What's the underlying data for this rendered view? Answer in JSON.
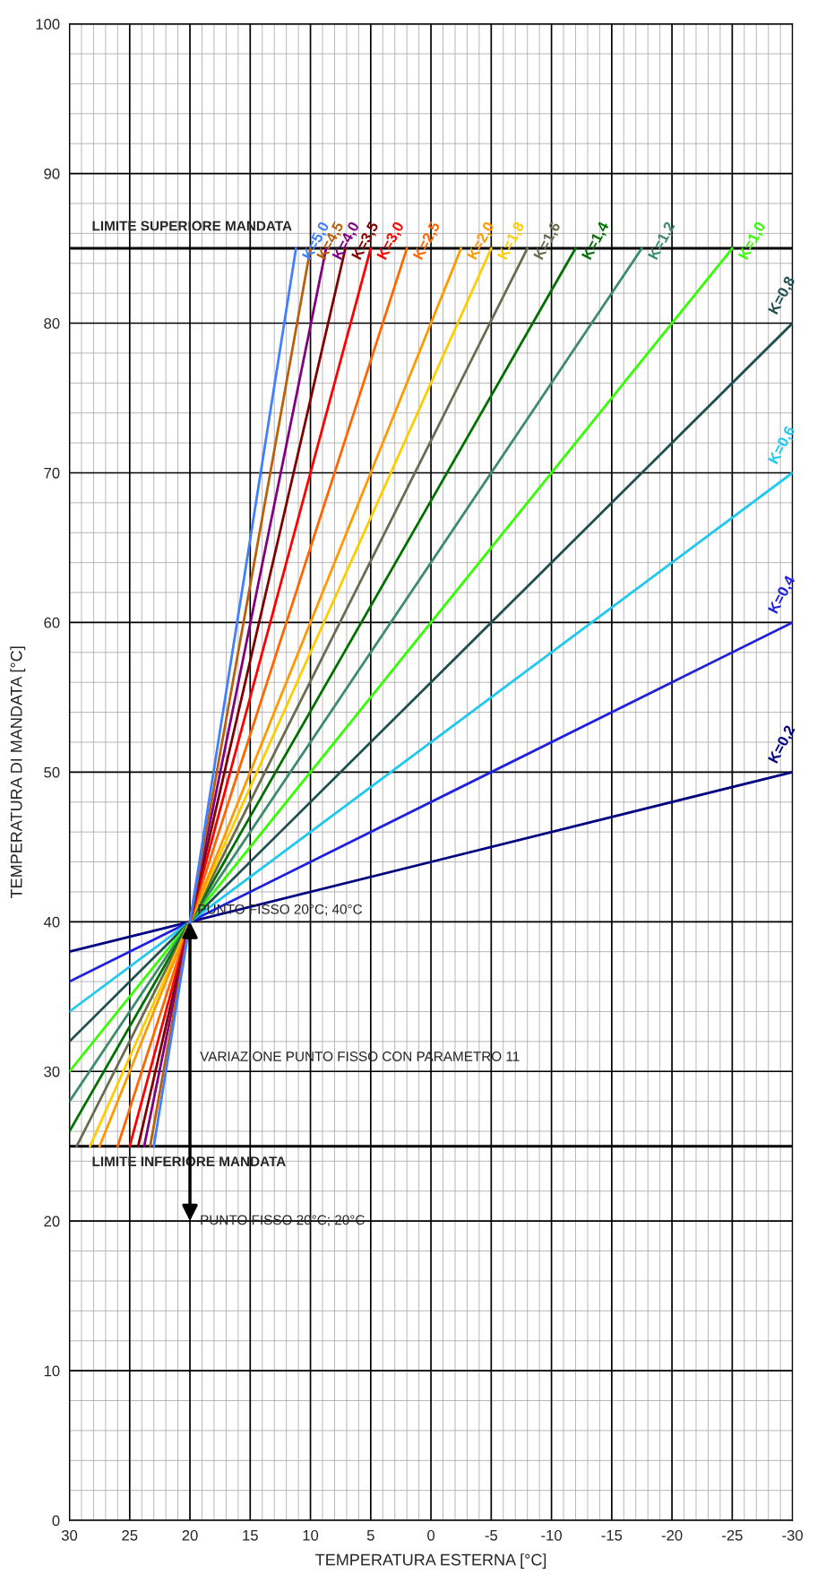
{
  "chart_data": {
    "type": "line",
    "xlabel": "TEMPERATURA ESTERNA [°C]",
    "ylabel": "TEMPERATURA DI MANDATA [°C]",
    "xlim": [
      30,
      -30
    ],
    "xticks": [
      30,
      25,
      20,
      15,
      10,
      5,
      0,
      -5,
      -10,
      -15,
      -20,
      -25,
      -30
    ],
    "ylim": [
      0,
      100
    ],
    "yticks": [
      0,
      10,
      20,
      30,
      40,
      50,
      60,
      70,
      80,
      90,
      100
    ],
    "grid": true,
    "series": [
      {
        "name": "K=0,2",
        "color": "#000080",
        "x": [
          30,
          20,
          -30
        ],
        "values": [
          38,
          40,
          50
        ]
      },
      {
        "name": "K=0,4",
        "color": "#2020e0",
        "x": [
          30,
          20,
          -30
        ],
        "values": [
          36,
          40,
          60
        ]
      },
      {
        "name": "K=0,6",
        "color": "#20c8f0",
        "x": [
          30,
          20,
          -30
        ],
        "values": [
          34,
          40,
          70
        ]
      },
      {
        "name": "K=0,8",
        "color": "#1f4f4f",
        "x": [
          30,
          20,
          -30
        ],
        "values": [
          32,
          40,
          80
        ]
      },
      {
        "name": "K=1,0",
        "color": "#33ff00",
        "x": [
          30,
          20,
          -25
        ],
        "values": [
          30,
          40,
          85
        ]
      },
      {
        "name": "K=1,2",
        "color": "#3c8c6c",
        "x": [
          30,
          20,
          -17.5
        ],
        "values": [
          28,
          40,
          85
        ]
      },
      {
        "name": "K=1,4",
        "color": "#007000",
        "x": [
          30,
          20,
          -12
        ],
        "values": [
          26,
          40,
          85
        ]
      },
      {
        "name": "K=1,6",
        "color": "#6b6b4f",
        "x": [
          29.4,
          20,
          -8
        ],
        "values": [
          25,
          40,
          85
        ]
      },
      {
        "name": "K=1,8",
        "color": "#ffcc00",
        "x": [
          28.3,
          20,
          -5
        ],
        "values": [
          25,
          40,
          85
        ]
      },
      {
        "name": "K=2,0",
        "color": "#ff9900",
        "x": [
          27.5,
          20,
          -2.5
        ],
        "values": [
          25,
          40,
          85
        ]
      },
      {
        "name": "K=2,5",
        "color": "#ff6600",
        "x": [
          26,
          20,
          2
        ],
        "values": [
          25,
          40,
          85
        ]
      },
      {
        "name": "K=3,0",
        "color": "#ff0000",
        "x": [
          25,
          20,
          5
        ],
        "values": [
          25,
          40,
          85
        ]
      },
      {
        "name": "K=3,5",
        "color": "#800000",
        "x": [
          24.3,
          20,
          7.1
        ],
        "values": [
          25,
          40,
          85
        ]
      },
      {
        "name": "K=4,0",
        "color": "#800080",
        "x": [
          23.8,
          20,
          8.7
        ],
        "values": [
          25,
          40,
          85
        ]
      },
      {
        "name": "K=4,5",
        "color": "#b8600c",
        "x": [
          23.3,
          20,
          10
        ],
        "values": [
          25,
          40,
          85
        ]
      },
      {
        "name": "K=5,0",
        "color": "#4080ff",
        "x": [
          23,
          20,
          11.2
        ],
        "values": [
          25,
          40,
          85
        ]
      }
    ],
    "ref_lines": [
      {
        "axis": "y",
        "value": 85,
        "label": "LIMITE SUPERIORE MANDATA",
        "color": "#000000"
      },
      {
        "axis": "y",
        "value": 25,
        "label": "LIMITE INFERIORE MANDATA",
        "color": "#000000"
      }
    ],
    "annotations": [
      {
        "text": "PUNTO FISSO 20°C; 40°C",
        "x": 20,
        "y": 40
      },
      "VARIAZIONE PUNTO FISSO CON PARAMETRO 11",
      "PUNTO FISSO 20°C; 20°C"
    ]
  }
}
